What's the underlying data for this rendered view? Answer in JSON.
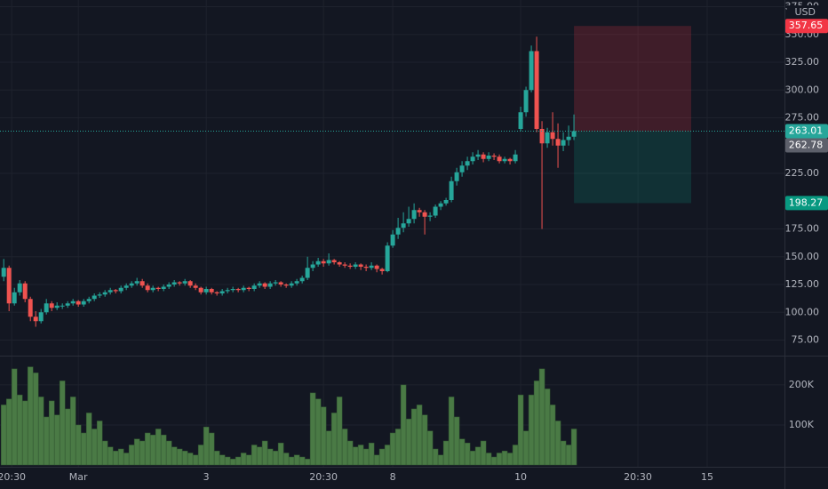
{
  "chart_data": {
    "type": "candlestick",
    "currency": "USD",
    "up_color": "#26a69a",
    "down_color": "#ef5350",
    "volume_color": "#4a7a45",
    "grid": true,
    "xlim": [
      -0.7,
      146.5
    ],
    "xticks": [
      {
        "value": 1.5,
        "label": "20:30"
      },
      {
        "value": 14,
        "label": "Mar"
      },
      {
        "value": 38,
        "label": "3"
      },
      {
        "value": 60,
        "label": "20:30"
      },
      {
        "value": 73,
        "label": "8"
      },
      {
        "value": 97,
        "label": "10"
      },
      {
        "value": 119,
        "label": "20:30"
      },
      {
        "value": 132,
        "label": "15"
      }
    ],
    "ylim": [
      61,
      381
    ],
    "yticks": [
      {
        "value": 75,
        "label": "75.00"
      },
      {
        "value": 100,
        "label": "100.00"
      },
      {
        "value": 125,
        "label": "125.00"
      },
      {
        "value": 150,
        "label": "150.00"
      },
      {
        "value": 175,
        "label": "175.00"
      },
      {
        "value": 225,
        "label": "225.00"
      },
      {
        "value": 275,
        "label": "275.00"
      },
      {
        "value": 300,
        "label": "300.00"
      },
      {
        "value": 325,
        "label": "325.00"
      },
      {
        "value": 350,
        "label": "350.00"
      },
      {
        "value": 375,
        "label": "375.00"
      }
    ],
    "vlim": [
      0,
      273000
    ],
    "vticks": [
      {
        "value": 100000,
        "label": "100K"
      },
      {
        "value": 200000,
        "label": "200K"
      }
    ],
    "ohlc": [
      [
        132,
        148,
        128,
        140
      ],
      [
        140,
        142,
        101,
        108
      ],
      [
        108,
        122,
        106,
        118
      ],
      [
        118,
        129,
        115,
        126
      ],
      [
        126,
        128,
        109,
        112
      ],
      [
        112,
        114,
        92,
        96
      ],
      [
        96,
        101,
        87,
        92
      ],
      [
        92,
        103,
        90,
        100
      ],
      [
        100,
        112,
        98,
        108
      ],
      [
        108,
        110,
        101,
        104
      ],
      [
        104,
        109,
        102,
        106
      ],
      [
        106,
        108,
        103,
        106
      ],
      [
        106,
        110,
        104,
        108
      ],
      [
        108,
        112,
        106,
        110
      ],
      [
        110,
        111,
        105,
        107
      ],
      [
        107,
        112,
        105,
        110
      ],
      [
        110,
        114,
        108,
        112
      ],
      [
        112,
        117,
        110,
        115
      ],
      [
        115,
        118,
        113,
        116
      ],
      [
        116,
        120,
        114,
        118
      ],
      [
        118,
        122,
        116,
        120
      ],
      [
        120,
        121,
        117,
        119
      ],
      [
        119,
        124,
        117,
        122
      ],
      [
        122,
        126,
        120,
        124
      ],
      [
        124,
        128,
        122,
        126
      ],
      [
        126,
        131,
        124,
        128
      ],
      [
        128,
        130,
        122,
        124
      ],
      [
        124,
        126,
        118,
        120
      ],
      [
        120,
        124,
        118,
        122
      ],
      [
        122,
        123,
        119,
        121
      ],
      [
        121,
        125,
        119,
        123
      ],
      [
        123,
        127,
        121,
        125
      ],
      [
        125,
        129,
        123,
        127
      ],
      [
        127,
        128,
        124,
        126
      ],
      [
        126,
        130,
        124,
        128
      ],
      [
        128,
        129,
        122,
        124
      ],
      [
        124,
        126,
        120,
        122
      ],
      [
        122,
        123,
        116,
        118
      ],
      [
        118,
        123,
        116,
        121
      ],
      [
        121,
        122,
        116,
        118
      ],
      [
        118,
        119,
        115,
        117
      ],
      [
        117,
        121,
        115,
        119
      ],
      [
        119,
        122,
        117,
        120
      ],
      [
        120,
        123,
        118,
        121
      ],
      [
        121,
        122,
        118,
        120
      ],
      [
        120,
        124,
        118,
        122
      ],
      [
        122,
        123,
        119,
        121
      ],
      [
        121,
        126,
        119,
        124
      ],
      [
        124,
        128,
        122,
        126
      ],
      [
        126,
        127,
        121,
        123
      ],
      [
        123,
        128,
        121,
        126
      ],
      [
        126,
        129,
        124,
        127
      ],
      [
        127,
        128,
        123,
        125
      ],
      [
        125,
        126,
        122,
        124
      ],
      [
        124,
        128,
        122,
        126
      ],
      [
        126,
        130,
        124,
        128
      ],
      [
        128,
        133,
        126,
        131
      ],
      [
        131,
        150,
        129,
        140
      ],
      [
        140,
        146,
        137,
        143
      ],
      [
        143,
        149,
        141,
        146
      ],
      [
        146,
        148,
        141,
        144
      ],
      [
        144,
        153,
        142,
        147
      ],
      [
        147,
        148,
        143,
        145
      ],
      [
        145,
        146,
        141,
        143
      ],
      [
        143,
        145,
        140,
        142
      ],
      [
        142,
        144,
        139,
        141
      ],
      [
        141,
        145,
        139,
        143
      ],
      [
        143,
        144,
        138,
        141
      ],
      [
        141,
        143,
        137,
        140
      ],
      [
        140,
        145,
        138,
        142
      ],
      [
        142,
        143,
        136,
        139
      ],
      [
        139,
        140,
        134,
        137
      ],
      [
        137,
        163,
        136,
        160
      ],
      [
        160,
        174,
        158,
        170
      ],
      [
        170,
        185,
        166,
        176
      ],
      [
        176,
        190,
        172,
        180
      ],
      [
        180,
        195,
        177,
        184
      ],
      [
        184,
        198,
        180,
        192
      ],
      [
        192,
        194,
        186,
        190
      ],
      [
        190,
        192,
        170,
        186
      ],
      [
        186,
        190,
        182,
        187
      ],
      [
        187,
        197,
        185,
        195
      ],
      [
        195,
        200,
        192,
        198
      ],
      [
        198,
        203,
        196,
        201
      ],
      [
        201,
        222,
        199,
        218
      ],
      [
        218,
        230,
        214,
        226
      ],
      [
        226,
        236,
        222,
        232
      ],
      [
        232,
        240,
        228,
        236
      ],
      [
        236,
        244,
        233,
        240
      ],
      [
        240,
        246,
        237,
        242
      ],
      [
        242,
        244,
        235,
        238
      ],
      [
        238,
        244,
        236,
        241
      ],
      [
        241,
        243,
        237,
        240
      ],
      [
        240,
        242,
        234,
        236
      ],
      [
        236,
        240,
        234,
        238
      ],
      [
        238,
        239,
        233,
        236
      ],
      [
        236,
        246,
        234,
        242
      ],
      [
        265,
        285,
        263,
        280
      ],
      [
        280,
        303,
        276,
        300
      ],
      [
        300,
        340,
        298,
        335
      ],
      [
        335,
        348,
        262,
        265
      ],
      [
        265,
        272,
        175,
        252
      ],
      [
        252,
        266,
        248,
        262
      ],
      [
        262,
        280,
        250,
        256
      ],
      [
        256,
        270,
        230,
        250
      ],
      [
        250,
        262,
        245,
        255
      ],
      [
        255,
        268,
        250,
        258
      ],
      [
        258,
        278,
        255,
        263.01
      ]
    ],
    "volume": [
      150000,
      165000,
      240000,
      175000,
      160000,
      245000,
      230000,
      170000,
      120000,
      160000,
      125000,
      210000,
      140000,
      170000,
      100000,
      80000,
      130000,
      90000,
      110000,
      60000,
      45000,
      35000,
      40000,
      30000,
      50000,
      65000,
      60000,
      80000,
      75000,
      90000,
      75000,
      60000,
      45000,
      40000,
      35000,
      30000,
      25000,
      50000,
      95000,
      80000,
      35000,
      25000,
      20000,
      15000,
      20000,
      30000,
      25000,
      50000,
      45000,
      60000,
      40000,
      35000,
      55000,
      30000,
      20000,
      25000,
      20000,
      15000,
      180000,
      165000,
      145000,
      85000,
      130000,
      170000,
      90000,
      60000,
      45000,
      50000,
      40000,
      55000,
      25000,
      40000,
      50000,
      80000,
      90000,
      200000,
      115000,
      140000,
      150000,
      125000,
      85000,
      40000,
      25000,
      60000,
      170000,
      120000,
      65000,
      55000,
      35000,
      45000,
      60000,
      30000,
      20000,
      30000,
      35000,
      30000,
      50000,
      175000,
      85000,
      175000,
      210000,
      240000,
      190000,
      150000,
      110000,
      60000,
      50000,
      90000
    ],
    "last_price": 263.01,
    "position": {
      "start": 107,
      "end": 129,
      "entry": 262.78,
      "stop": 357.65,
      "target": 198.27
    }
  }
}
